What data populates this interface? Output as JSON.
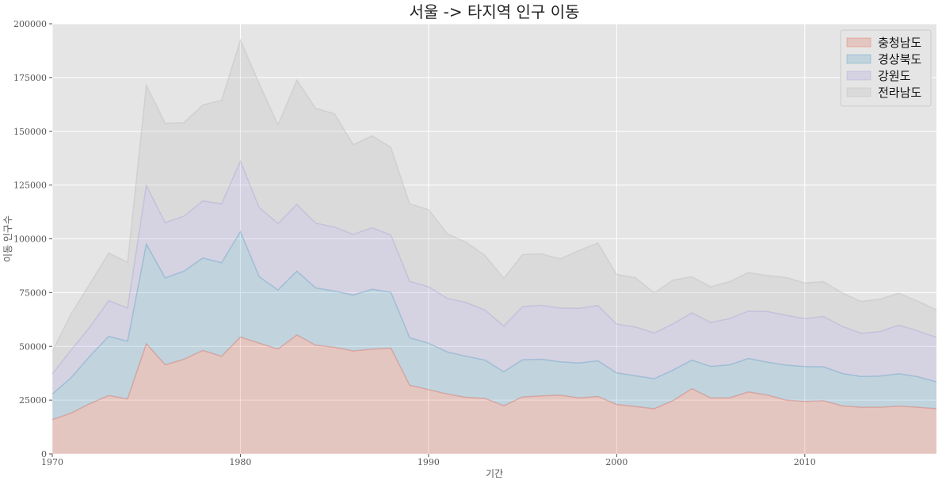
{
  "chart_data": {
    "type": "area",
    "stacked": true,
    "title": "서울 -> 타지역 인구 이동",
    "xlabel": "기간",
    "ylabel": "이동 인구수",
    "xlim": [
      1970,
      2017
    ],
    "ylim": [
      0,
      200000
    ],
    "x_ticks": [
      1970,
      1980,
      1990,
      2000,
      2010
    ],
    "y_ticks": [
      0,
      25000,
      50000,
      75000,
      100000,
      125000,
      150000,
      175000,
      200000
    ],
    "grid": true,
    "legend_position": "top-right",
    "style": "ggplot",
    "x": [
      1970,
      1971,
      1972,
      1973,
      1974,
      1975,
      1976,
      1977,
      1978,
      1979,
      1980,
      1981,
      1982,
      1983,
      1984,
      1985,
      1986,
      1987,
      1988,
      1989,
      1990,
      1991,
      1992,
      1993,
      1994,
      1995,
      1996,
      1997,
      1998,
      1999,
      2000,
      2001,
      2002,
      2003,
      2004,
      2005,
      2006,
      2007,
      2008,
      2009,
      2010,
      2011,
      2012,
      2013,
      2014,
      2015,
      2016,
      2017
    ],
    "series": [
      {
        "name": "충청남도",
        "color": "#E24A33",
        "values": [
          15954,
          18943,
          23406,
          27139,
          25509,
          51205,
          41447,
          43993,
          48091,
          45388,
          54337,
          51493,
          48733,
          55296,
          50537,
          49588,
          47861,
          48717,
          49189,
          31901,
          29900,
          27800,
          26300,
          25800,
          22400,
          26500,
          27000,
          27300,
          26000,
          26700,
          23000,
          22000,
          21000,
          24800,
          30300,
          26000,
          26000,
          28800,
          27400,
          25000,
          24400,
          24700,
          22300,
          21700,
          21700,
          22200,
          21700,
          21000
        ]
      },
      {
        "name": "경상북도",
        "color": "#348ABD",
        "values": [
          11868,
          16459,
          22073,
          27531,
          26902,
          46373,
          40375,
          41022,
          43018,
          43505,
          49067,
          30925,
          27452,
          29677,
          26658,
          26112,
          26048,
          27862,
          25949,
          22130,
          21600,
          19600,
          19100,
          17800,
          15800,
          17300,
          17000,
          15500,
          16300,
          16600,
          14700,
          14300,
          14000,
          14200,
          13300,
          14700,
          15400,
          15600,
          15300,
          16300,
          16200,
          15800,
          15100,
          14300,
          14500,
          15100,
          14200,
          12500
        ]
      },
      {
        "name": "강원도",
        "color": "#988ED5",
        "values": [
          9352,
          12885,
          13561,
          16592,
          15387,
          27274,
          25707,
          25573,
          26485,
          27382,
          32698,
          32110,
          30960,
          31030,
          30100,
          29800,
          28100,
          28600,
          26600,
          26200,
          26200,
          24900,
          25000,
          23300,
          21200,
          24700,
          25100,
          25000,
          25400,
          25700,
          22700,
          22700,
          21200,
          21500,
          22000,
          20400,
          21500,
          22000,
          23500,
          23200,
          22300,
          23400,
          21900,
          20100,
          20700,
          22600,
          21300,
          20700
        ]
      },
      {
        "name": "전라남도",
        "color": "#B0B0B0",
        "values": [
          10513,
          16755,
          20157,
          22160,
          21314,
          46610,
          46218,
          43434,
          44741,
          48152,
          56347,
          57702,
          45870,
          57800,
          53400,
          52700,
          41800,
          42700,
          40800,
          36100,
          35900,
          30100,
          28000,
          25400,
          22300,
          24200,
          23900,
          22900,
          26900,
          29100,
          23100,
          22900,
          18700,
          20400,
          16800,
          16600,
          17200,
          17900,
          16800,
          17600,
          16600,
          16200,
          15500,
          14800,
          15100,
          14800,
          13900,
          12800
        ]
      }
    ]
  }
}
